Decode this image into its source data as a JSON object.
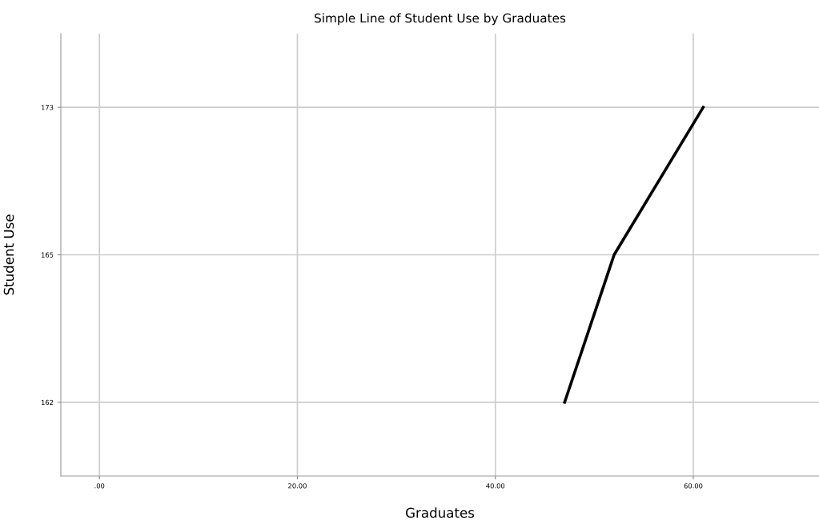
{
  "chart_data": {
    "type": "line",
    "title": "Simple Line of Student Use by Graduates",
    "xlabel": "Graduates",
    "ylabel": "Student Use",
    "orientation": "horizontal",
    "categories": [
      "173",
      "165",
      "162"
    ],
    "series": [
      {
        "color": "#000000",
        "values": [
          61,
          52,
          47
        ]
      }
    ],
    "xlim": [
      -3.9,
      72.7
    ],
    "xticks": [
      {
        "value": 0,
        "label": ".00"
      },
      {
        "value": 20,
        "label": "20.00"
      },
      {
        "value": 40,
        "label": "40.00"
      },
      {
        "value": 60,
        "label": "60.00"
      }
    ],
    "grid": true,
    "marker": "none",
    "line_style": "solid"
  }
}
